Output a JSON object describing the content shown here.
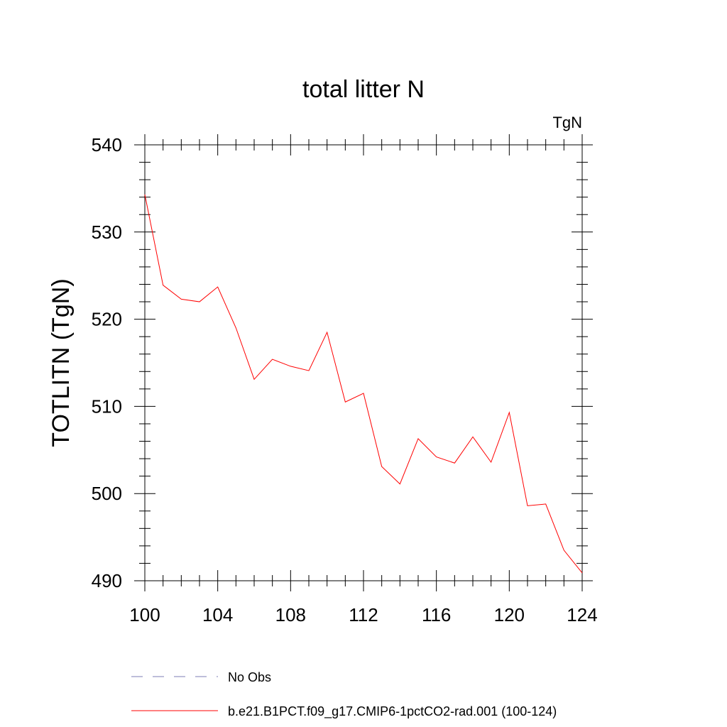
{
  "chart_data": {
    "type": "line",
    "title": "total litter N",
    "units": "TgN",
    "ylabel": "TOTLITN  (TgN)",
    "xlabel": "",
    "xlim": [
      100,
      124
    ],
    "ylim": [
      490,
      540
    ],
    "xticks": [
      100,
      104,
      108,
      112,
      116,
      120,
      124
    ],
    "yticks": [
      490,
      500,
      510,
      520,
      530,
      540
    ],
    "grid": false,
    "legend_position": "bottom",
    "x": [
      100,
      101,
      102,
      103,
      104,
      105,
      106,
      107,
      108,
      109,
      110,
      111,
      112,
      113,
      114,
      115,
      116,
      117,
      118,
      119,
      120,
      121,
      122,
      123,
      124
    ],
    "series": [
      {
        "name": "b.e21.B1PCT.f09_g17.CMIP6-1pctCO2-rad.001 (100-124)",
        "color": "#ff0000",
        "style": "solid",
        "values": [
          534.3,
          523.9,
          522.3,
          522.0,
          523.7,
          519.0,
          513.1,
          515.4,
          514.6,
          514.1,
          518.5,
          510.5,
          511.5,
          503.1,
          501.1,
          506.3,
          504.2,
          503.5,
          506.5,
          503.6,
          509.3,
          498.6,
          498.8,
          493.5,
          490.9
        ]
      }
    ],
    "legend": [
      {
        "label": "No Obs",
        "color": "#7d7db4",
        "style": "dashed"
      },
      {
        "label": "b.e21.B1PCT.f09_g17.CMIP6-1pctCO2-rad.001 (100-124)",
        "color": "#ff0000",
        "style": "solid"
      }
    ]
  }
}
